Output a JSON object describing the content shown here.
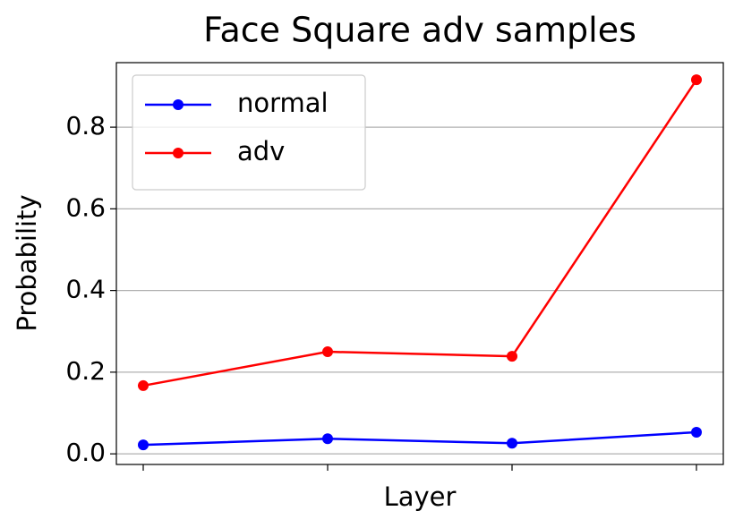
{
  "chart_data": {
    "type": "line",
    "title": "Face Square adv samples",
    "xlabel": "Layer",
    "ylabel": "Probability",
    "categories": [
      null,
      null,
      null,
      null
    ],
    "series": [
      {
        "name": "normal",
        "color": "#0000ff",
        "values": [
          0.022,
          0.037,
          0.026,
          0.053
        ]
      },
      {
        "name": "adv",
        "color": "#ff0000",
        "values": [
          0.167,
          0.25,
          0.239,
          0.916
        ]
      }
    ],
    "ylim": [
      -0.026,
      0.958
    ],
    "yticks": [
      {
        "value": 0,
        "label": "0.0"
      },
      0.2,
      0.4,
      0.6,
      0.8
    ],
    "grid": true,
    "legend": "upper left"
  }
}
